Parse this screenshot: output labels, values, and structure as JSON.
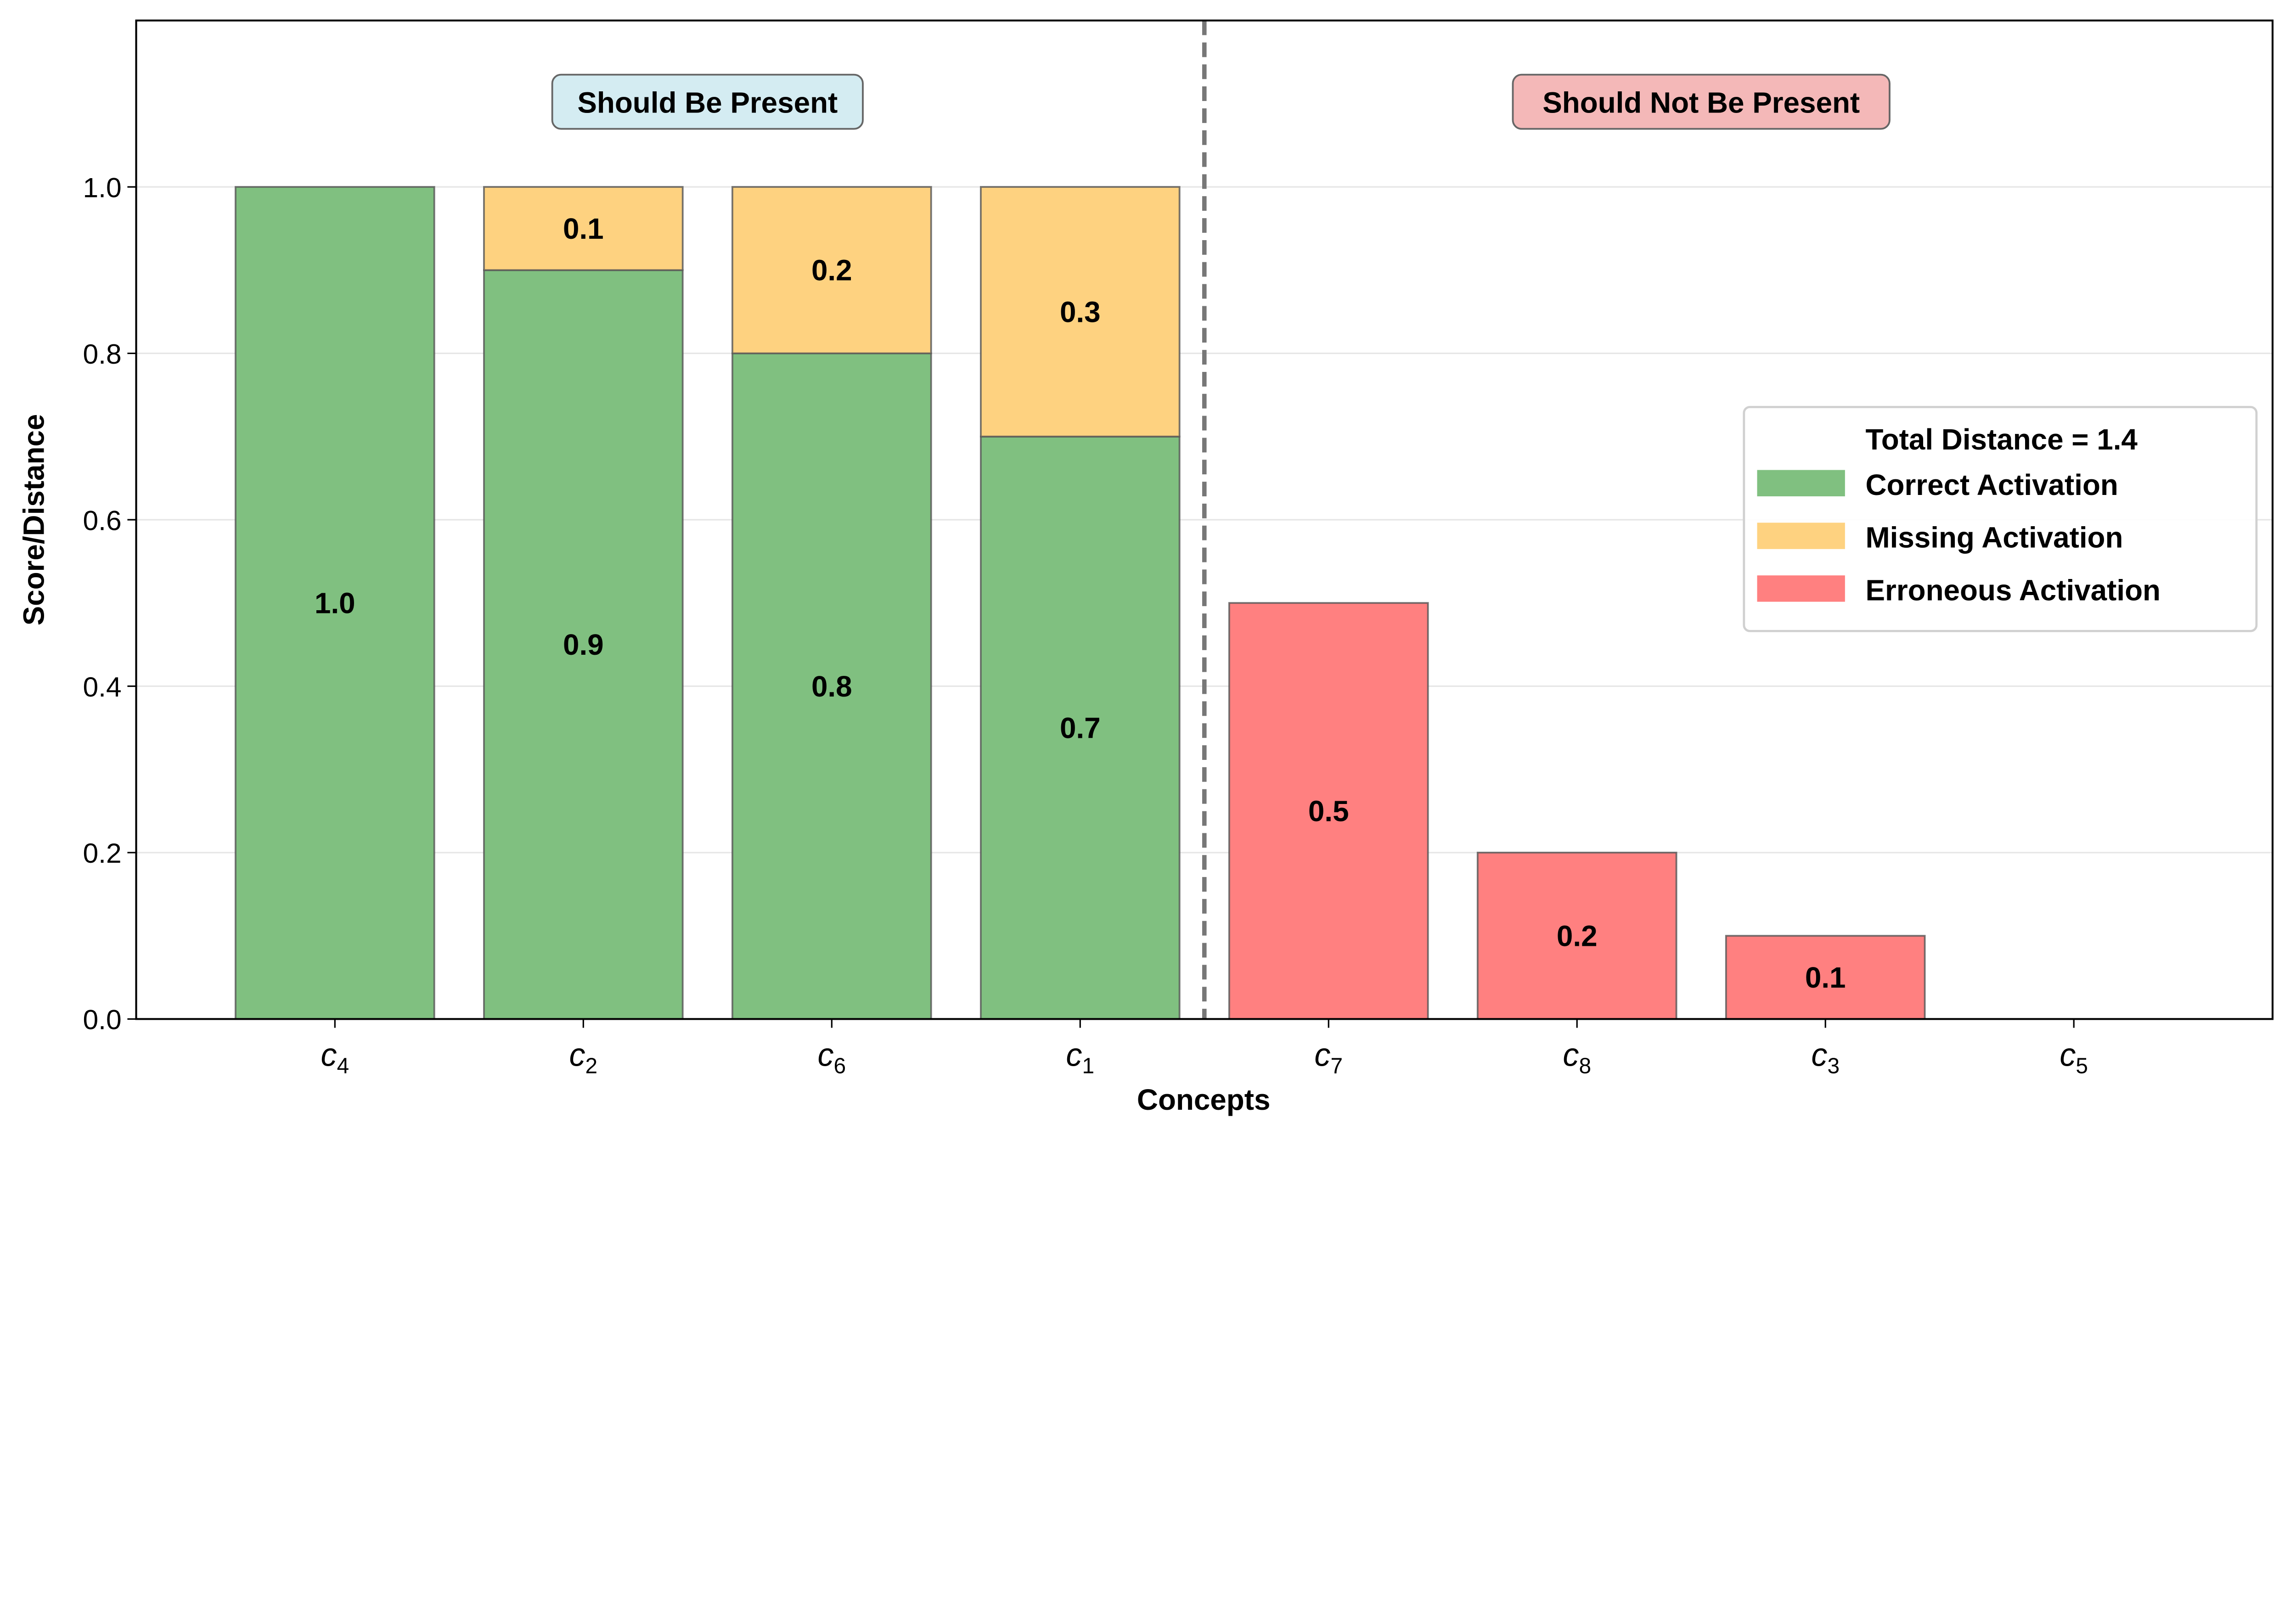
{
  "chart_data": {
    "type": "bar",
    "stacked": true,
    "xlabel": "Concepts",
    "ylabel": "Score/Distance",
    "ylim": [
      0,
      1.2
    ],
    "yticks": [
      "0.0",
      "0.2",
      "0.4",
      "0.6",
      "0.8",
      "1.0"
    ],
    "grid": "horizontal",
    "categories": [
      {
        "base": "c",
        "sub": "4"
      },
      {
        "base": "c",
        "sub": "2"
      },
      {
        "base": "c",
        "sub": "6"
      },
      {
        "base": "c",
        "sub": "1"
      },
      {
        "base": "c",
        "sub": "7"
      },
      {
        "base": "c",
        "sub": "8"
      },
      {
        "base": "c",
        "sub": "3"
      },
      {
        "base": "c",
        "sub": "5"
      }
    ],
    "series": [
      {
        "name": "Correct Activation",
        "color": "#80c080",
        "values": [
          1.0,
          0.9,
          0.8,
          0.7,
          0,
          0,
          0,
          0
        ]
      },
      {
        "name": "Missing Activation",
        "color": "#fed280",
        "values": [
          0,
          0.1,
          0.2,
          0.3,
          0,
          0,
          0,
          0
        ]
      },
      {
        "name": "Erroneous Activation",
        "color": "#ff8080",
        "values": [
          0,
          0,
          0,
          0,
          0.5,
          0.2,
          0.1,
          0.0
        ]
      }
    ],
    "divider": {
      "after_index": 3,
      "style": "dashed",
      "color": "#777777"
    },
    "group_labels": [
      {
        "text": "Should Be Present",
        "color": "#d4ecf2"
      },
      {
        "text": "Should Not Be Present",
        "color": "#f4b8b8"
      }
    ],
    "legend": {
      "title": "Total Distance = 1.4",
      "placement": "center-right"
    }
  }
}
